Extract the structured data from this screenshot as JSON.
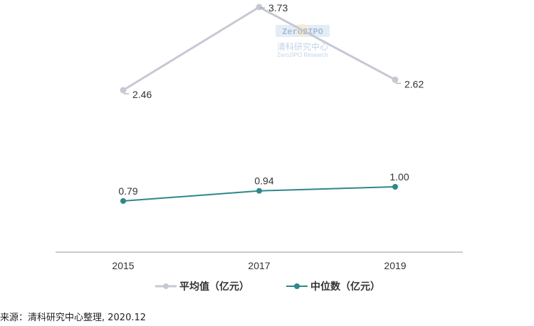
{
  "watermark": {
    "logo_text": "Zero2IPO",
    "name": "清科研究中心",
    "subtitle": "Zero2IPO Research"
  },
  "source_text": "来源：清科研究中心整理, 2020.12",
  "colors": {
    "average": "#c5c9d3",
    "median": "#2f878a",
    "axis": "#999999"
  },
  "chart_data": {
    "type": "line",
    "x": [
      "2015",
      "2017",
      "2019"
    ],
    "series": [
      {
        "name": "平均值（亿元）",
        "values": [
          2.46,
          3.73,
          2.62
        ],
        "labels": [
          "2.46",
          "3.73",
          "2.62"
        ]
      },
      {
        "name": "中位数（亿元）",
        "values": [
          0.79,
          0.94,
          1.0
        ],
        "labels": [
          "0.79",
          "0.94",
          "1.00"
        ]
      }
    ],
    "legend_position": "bottom-center",
    "grid": false
  }
}
